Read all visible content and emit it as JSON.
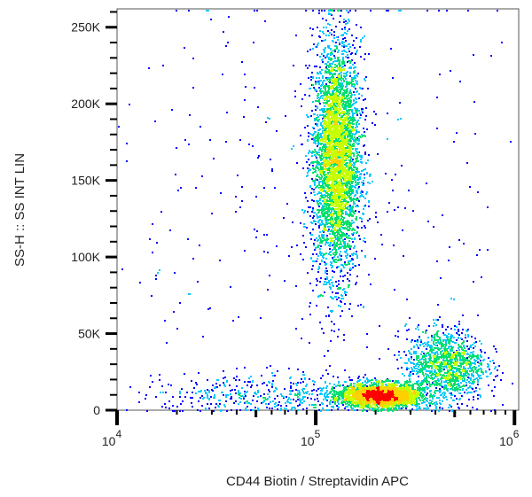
{
  "chart_data": {
    "type": "scatter",
    "subtype": "flow cytometry density dot plot",
    "xlabel": "CD44 Biotin / Streptavidin APC",
    "ylabel": "SS-H :: SS INT LIN",
    "x_scale": "log",
    "y_scale": "linear",
    "xlim": [
      10000,
      1050000
    ],
    "ylim": [
      0,
      262000
    ],
    "x_ticks": [
      {
        "value": 10000,
        "base": "10",
        "exp": "4"
      },
      {
        "value": 100000,
        "base": "10",
        "exp": "5"
      },
      {
        "value": 1000000,
        "base": "10",
        "exp": "6"
      }
    ],
    "y_ticks": [
      {
        "value": 0,
        "label": "0"
      },
      {
        "value": 50000,
        "label": "50K"
      },
      {
        "value": 100000,
        "label": "100K"
      },
      {
        "value": 150000,
        "label": "150K"
      },
      {
        "value": 200000,
        "label": "200K"
      },
      {
        "value": 250000,
        "label": "250K"
      }
    ],
    "grid": false,
    "legend": "none",
    "colormap": [
      "#0000ff",
      "#00c8ff",
      "#00e070",
      "#c8ff00",
      "#ffd000",
      "#ff0000"
    ],
    "populations": [
      {
        "x_center": 126000,
        "x_log_sd": 0.06,
        "y_center": 165000,
        "y_sd": 38000,
        "count": 4200
      },
      {
        "x_center": 210000,
        "x_log_sd": 0.1,
        "y_center": 10000,
        "y_sd": 4000,
        "count": 2600
      },
      {
        "x_center": 450000,
        "x_log_sd": 0.1,
        "y_center": 30000,
        "y_sd": 12000,
        "count": 1300
      },
      {
        "x_center": 60000,
        "x_log_sd": 0.35,
        "y_center": 10000,
        "y_sd": 7000,
        "count": 500
      },
      {
        "x_center": 100000,
        "x_log_sd": 0.6,
        "y_center": 130000,
        "y_sd": 80000,
        "count": 350
      }
    ]
  }
}
